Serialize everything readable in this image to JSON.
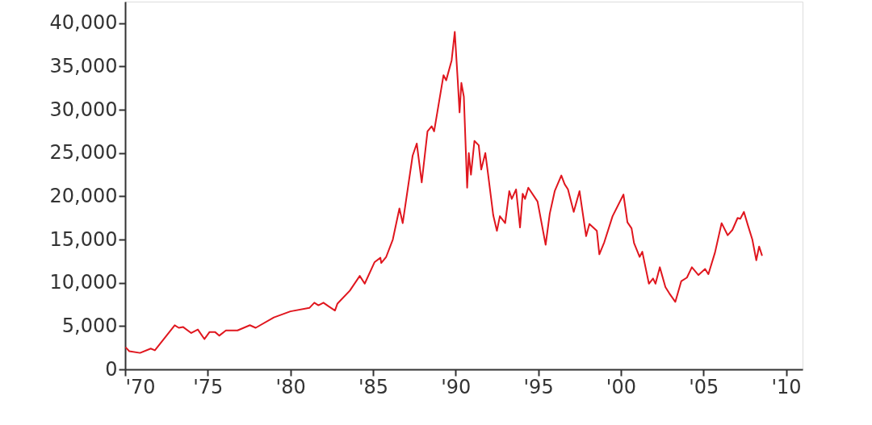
{
  "chart_data": {
    "type": "line",
    "x": [
      1970.05,
      1970.25,
      1970.9,
      1971.55,
      1971.8,
      1973.0,
      1973.25,
      1973.5,
      1974.0,
      1974.4,
      1974.8,
      1975.1,
      1975.45,
      1975.7,
      1976.1,
      1976.8,
      1977.55,
      1977.9,
      1979.0,
      1980.0,
      1981.15,
      1981.45,
      1981.7,
      1982.0,
      1982.3,
      1982.7,
      1982.85,
      1983.6,
      1984.2,
      1984.5,
      1985.1,
      1985.45,
      1985.5,
      1985.8,
      1986.2,
      1986.6,
      1986.8,
      1987.4,
      1987.65,
      1987.95,
      1988.3,
      1988.55,
      1988.7,
      1989.27,
      1989.43,
      1989.76,
      1989.95,
      1990.13,
      1990.24,
      1990.35,
      1990.5,
      1990.7,
      1990.8,
      1990.93,
      1991.14,
      1991.4,
      1991.55,
      1991.8,
      1991.95,
      1992.28,
      1992.5,
      1992.68,
      1993.0,
      1993.25,
      1993.4,
      1993.66,
      1993.9,
      1994.06,
      1994.2,
      1994.4,
      1994.96,
      1995.45,
      1995.7,
      1996.0,
      1996.4,
      1996.6,
      1996.8,
      1997.15,
      1997.5,
      1997.9,
      1998.1,
      1998.55,
      1998.7,
      1999.0,
      1999.5,
      2000.16,
      2000.4,
      2000.65,
      2000.8,
      2001.14,
      2001.3,
      2001.7,
      2001.95,
      2002.1,
      2002.36,
      2002.7,
      2002.93,
      2003.3,
      2003.66,
      2004.0,
      2004.3,
      2004.7,
      2005.1,
      2005.3,
      2005.7,
      2006.1,
      2006.47,
      2006.75,
      2007.07,
      2007.23,
      2007.45,
      2007.7,
      2007.96,
      2008.2,
      2008.37,
      2008.54
    ],
    "series": [
      {
        "color": "#e0161e",
        "line_style": "solid",
        "values": [
          2500,
          2100,
          1900,
          2400,
          2200,
          5100,
          4800,
          4900,
          4200,
          4600,
          3500,
          4300,
          4300,
          3900,
          4500,
          4500,
          5100,
          4800,
          6000,
          6700,
          7100,
          7700,
          7400,
          7700,
          7300,
          6800,
          7600,
          9100,
          10800,
          9900,
          12400,
          12900,
          12300,
          13000,
          15000,
          18600,
          16900,
          24700,
          26100,
          21600,
          27500,
          28100,
          27500,
          34000,
          33400,
          35700,
          39000,
          33400,
          29700,
          33100,
          31500,
          21000,
          25000,
          22500,
          26400,
          25900,
          23100,
          25000,
          22800,
          17800,
          16000,
          17700,
          16900,
          20600,
          19700,
          20800,
          16400,
          20300,
          19700,
          21000,
          19400,
          14400,
          18000,
          20600,
          22400,
          21400,
          20800,
          18200,
          20600,
          15400,
          16800,
          16000,
          13300,
          14700,
          17700,
          20200,
          17000,
          16300,
          14600,
          13000,
          13600,
          9900,
          10500,
          9900,
          11800,
          9500,
          8800,
          7800,
          10200,
          10600,
          11800,
          10900,
          11600,
          11000,
          13500,
          16900,
          15500,
          16100,
          17500,
          17400,
          18200,
          16600,
          15000,
          12600,
          14200,
          13200
        ]
      }
    ],
    "xlim": [
      1970,
      2011
    ],
    "xticks": [
      {
        "value": 1970,
        "label": "'70"
      },
      {
        "value": 1975,
        "label": "'75"
      },
      {
        "value": 1980,
        "label": "'80"
      },
      {
        "value": 1985,
        "label": "'85"
      },
      {
        "value": 1990,
        "label": "'90"
      },
      {
        "value": 1995,
        "label": "'95"
      },
      {
        "value": 2000,
        "label": "'00"
      },
      {
        "value": 2005,
        "label": "'05"
      },
      {
        "value": 2010,
        "label": "'10"
      }
    ],
    "ylim": [
      0,
      42500
    ],
    "yticks": [
      0,
      {
        "value": 5000,
        "label": "5,000"
      },
      {
        "value": 10000,
        "label": "10,000"
      },
      {
        "value": 15000,
        "label": "15,000"
      },
      {
        "value": 20000,
        "label": "20,000"
      },
      {
        "value": 25000,
        "label": "25,000"
      },
      {
        "value": 30000,
        "label": "30,000"
      },
      {
        "value": 35000,
        "label": "35,000"
      },
      {
        "value": 40000,
        "label": "40,000"
      }
    ]
  }
}
